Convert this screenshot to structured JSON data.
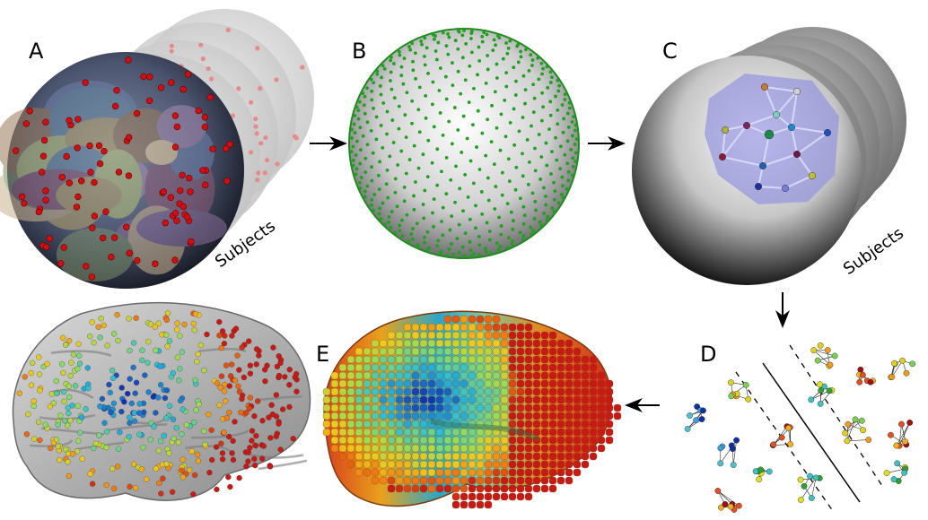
{
  "figure": {
    "panels": [
      {
        "id": "A",
        "label": "A"
      },
      {
        "id": "B",
        "label": "B"
      },
      {
        "id": "C",
        "label": "C"
      },
      {
        "id": "D",
        "label": "D"
      },
      {
        "id": "E",
        "label": "E"
      }
    ],
    "subjects_label_A": "Subjects",
    "subjects_label_C": "Subjects"
  },
  "colors": {
    "sphere_dark": "#1c1f33",
    "sphere_light": "#e8e8e8",
    "marker_red": "#d01010",
    "marker_green": "#1fa01f",
    "hull_blue": "#8f8fe0",
    "arrow": "#000000"
  },
  "icons": {
    "arrow": "right-arrow-icon"
  }
}
